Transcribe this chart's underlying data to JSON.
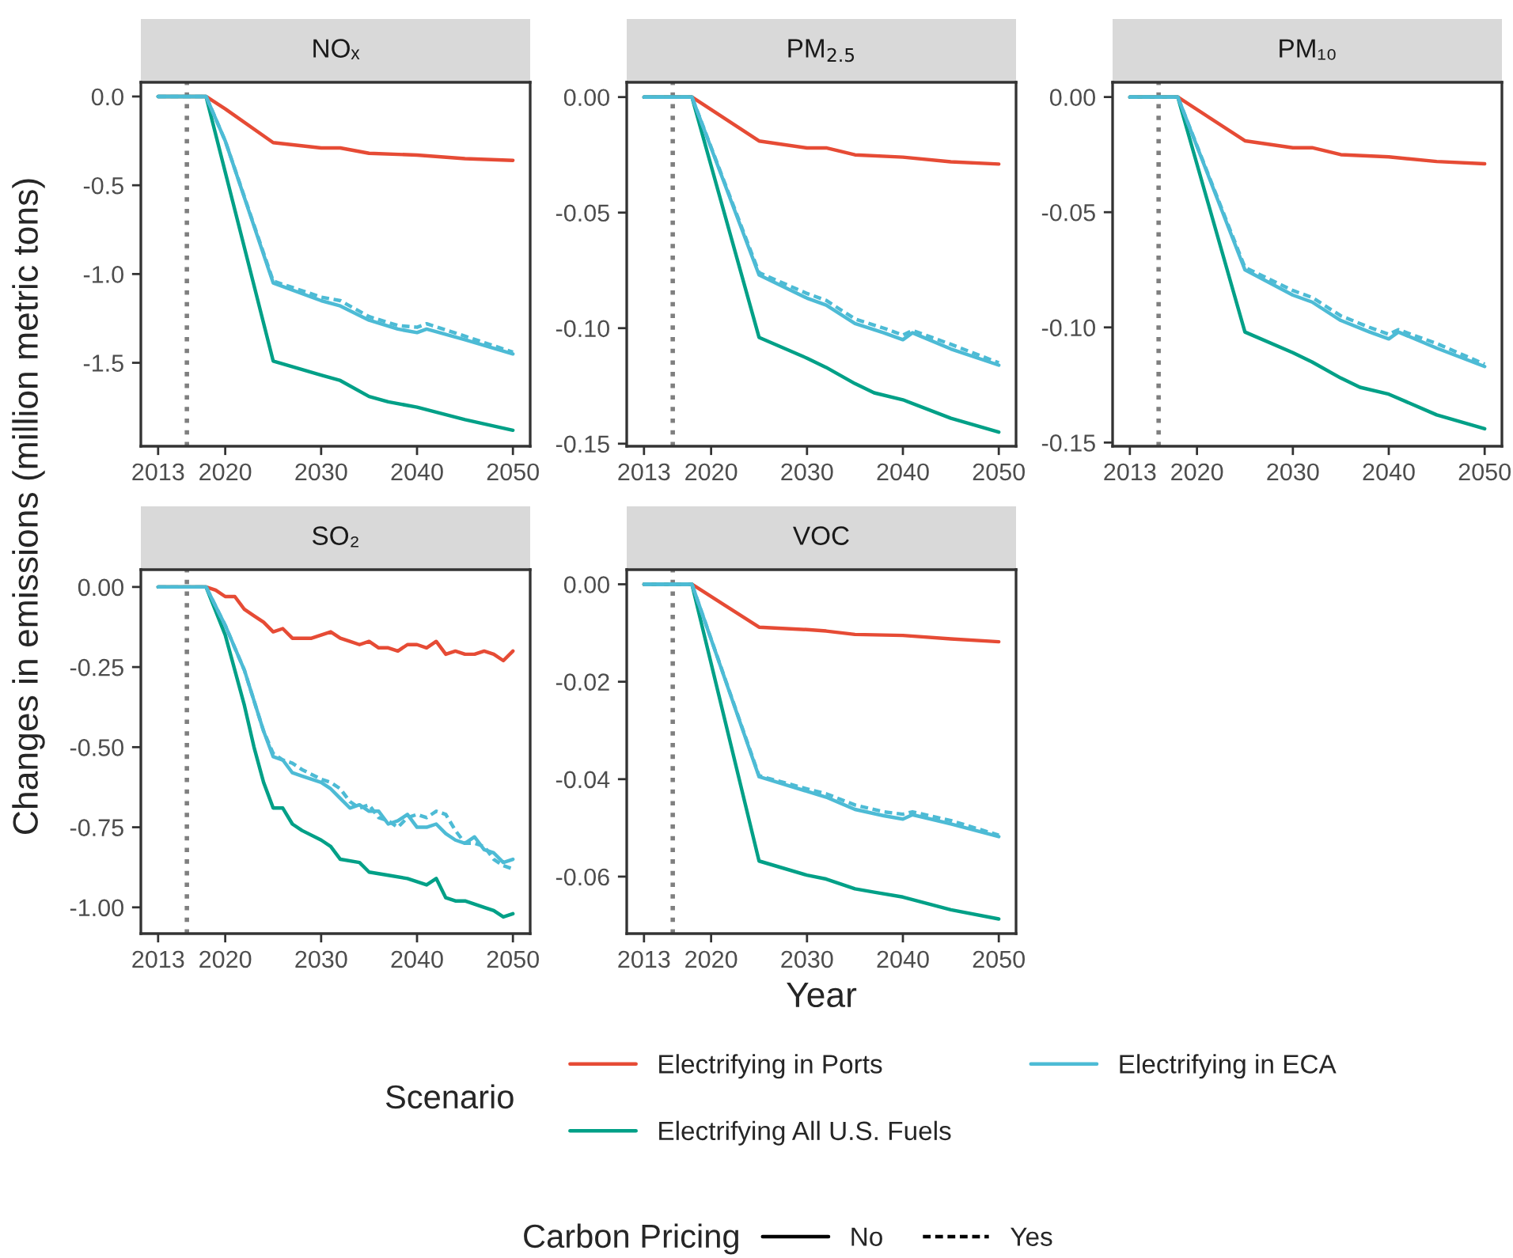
{
  "chart_data": [
    {
      "type": "line",
      "title": "NOₓ",
      "ylabel": "Changes in emissions (million metric tons)",
      "legend_title": "Scenario",
      "legend": "bottom",
      "annotations": [
        "Carbon Pricing",
        "No",
        "Yes"
      ],
      "xlim": [
        2011.2,
        2051.8
      ],
      "xticks": [
        2013,
        2020,
        2030,
        2040,
        2050
      ],
      "ylim": [
        -1.97,
        0.08
      ],
      "yticks": [
        {
          "value": 0,
          "label": "0.0"
        },
        {
          "value": -0.5,
          "label": "-0.5"
        },
        {
          "value": -1.0,
          "label": "-1.0"
        },
        {
          "value": -1.5,
          "label": "-1.5"
        }
      ],
      "ref_lines": [
        {
          "axis": "x",
          "value": 2016,
          "color": "#7f7f7f",
          "line_style": "dotted"
        }
      ],
      "series": [
        {
          "name": "Electrifying in Ports",
          "color": "#e64b35",
          "line_style": "solid",
          "x": [
            2013,
            2018,
            2020,
            2025,
            2030,
            2032,
            2035,
            2040,
            2045,
            2050
          ],
          "values": [
            0,
            0,
            -0.07,
            -0.26,
            -0.29,
            -0.29,
            -0.32,
            -0.33,
            -0.35,
            -0.36
          ]
        },
        {
          "name": "Electrifying All U.S. Fuels",
          "color": "#00a087",
          "line_style": "solid",
          "x": [
            2013,
            2018,
            2025,
            2030,
            2032,
            2035,
            2037,
            2040,
            2045,
            2050
          ],
          "values": [
            0,
            0,
            -1.49,
            -1.57,
            -1.6,
            -1.69,
            -1.72,
            -1.75,
            -1.82,
            -1.88
          ]
        },
        {
          "name": "Electrifying in ECA",
          "color": "#4dbbd5",
          "line_style": "solid",
          "x": [
            2013,
            2018,
            2020,
            2025,
            2030,
            2032,
            2035,
            2038,
            2040,
            2041,
            2045,
            2050
          ],
          "values": [
            0,
            0,
            -0.25,
            -1.05,
            -1.15,
            -1.18,
            -1.26,
            -1.31,
            -1.33,
            -1.31,
            -1.37,
            -1.45
          ]
        },
        {
          "color": "#4dbbd5",
          "line_style": "dashed",
          "x": [
            2013,
            2018,
            2020,
            2025,
            2030,
            2032,
            2035,
            2038,
            2040,
            2041,
            2045,
            2050
          ],
          "values": [
            0,
            0,
            -0.25,
            -1.04,
            -1.13,
            -1.15,
            -1.24,
            -1.29,
            -1.3,
            -1.28,
            -1.35,
            -1.44
          ]
        }
      ]
    },
    {
      "type": "line",
      "title": "PM$_{2.5}$",
      "xlim": [
        2011.2,
        2051.8
      ],
      "xticks": [
        2013,
        2020,
        2030,
        2040,
        2050
      ],
      "ylim": [
        -0.1511,
        0.0064
      ],
      "yticks": [
        {
          "value": 0,
          "label": "0.00"
        },
        {
          "value": -0.05,
          "label": "-0.05"
        },
        {
          "value": -0.1,
          "label": "-0.10"
        },
        {
          "value": -0.15,
          "label": "-0.15"
        }
      ],
      "ref_lines": [
        {
          "axis": "x",
          "value": 2016,
          "color": "#7f7f7f",
          "line_style": "dotted"
        }
      ],
      "series": [
        {
          "color": "#e64b35",
          "line_style": "solid",
          "x": [
            2013,
            2018,
            2025,
            2030,
            2032,
            2035,
            2040,
            2045,
            2050
          ],
          "values": [
            0,
            0,
            -0.019,
            -0.022,
            -0.022,
            -0.025,
            -0.026,
            -0.028,
            -0.029
          ]
        },
        {
          "color": "#00a087",
          "line_style": "solid",
          "x": [
            2013,
            2018,
            2025,
            2030,
            2032,
            2035,
            2037,
            2040,
            2045,
            2050
          ],
          "values": [
            0,
            0,
            -0.104,
            -0.113,
            -0.117,
            -0.124,
            -0.128,
            -0.131,
            -0.139,
            -0.145
          ]
        },
        {
          "color": "#4dbbd5",
          "line_style": "solid",
          "x": [
            2013,
            2018,
            2025,
            2030,
            2032,
            2035,
            2038,
            2040,
            2041,
            2045,
            2050
          ],
          "values": [
            0,
            0,
            -0.077,
            -0.087,
            -0.09,
            -0.098,
            -0.102,
            -0.105,
            -0.102,
            -0.109,
            -0.116
          ]
        },
        {
          "color": "#4dbbd5",
          "line_style": "dashed",
          "x": [
            2013,
            2018,
            2025,
            2030,
            2032,
            2035,
            2038,
            2040,
            2041,
            2045,
            2050
          ],
          "values": [
            0,
            0,
            -0.076,
            -0.085,
            -0.088,
            -0.096,
            -0.1,
            -0.103,
            -0.101,
            -0.107,
            -0.115
          ]
        }
      ]
    },
    {
      "type": "line",
      "title": "PM₁₀",
      "xlim": [
        2011.2,
        2051.8
      ],
      "xticks": [
        2013,
        2020,
        2030,
        2040,
        2050
      ],
      "ylim": [
        -0.1516,
        0.0064
      ],
      "yticks": [
        {
          "value": 0,
          "label": "0.00"
        },
        {
          "value": -0.05,
          "label": "-0.05"
        },
        {
          "value": -0.1,
          "label": "-0.10"
        },
        {
          "value": -0.15,
          "label": "-0.15"
        }
      ],
      "ref_lines": [
        {
          "axis": "x",
          "value": 2016,
          "color": "#7f7f7f",
          "line_style": "dotted"
        }
      ],
      "series": [
        {
          "color": "#e64b35",
          "line_style": "solid",
          "x": [
            2013,
            2018,
            2025,
            2030,
            2032,
            2035,
            2040,
            2045,
            2050
          ],
          "values": [
            0,
            0,
            -0.019,
            -0.022,
            -0.022,
            -0.025,
            -0.026,
            -0.028,
            -0.029
          ]
        },
        {
          "color": "#00a087",
          "line_style": "solid",
          "x": [
            2013,
            2018,
            2025,
            2030,
            2032,
            2035,
            2037,
            2040,
            2045,
            2050
          ],
          "values": [
            0,
            0,
            -0.102,
            -0.111,
            -0.115,
            -0.122,
            -0.126,
            -0.129,
            -0.138,
            -0.144
          ]
        },
        {
          "color": "#4dbbd5",
          "line_style": "solid",
          "x": [
            2013,
            2018,
            2025,
            2030,
            2032,
            2035,
            2038,
            2040,
            2041,
            2045,
            2050
          ],
          "values": [
            0,
            0,
            -0.075,
            -0.086,
            -0.089,
            -0.097,
            -0.102,
            -0.105,
            -0.102,
            -0.109,
            -0.117
          ]
        },
        {
          "color": "#4dbbd5",
          "line_style": "dashed",
          "x": [
            2013,
            2018,
            2025,
            2030,
            2032,
            2035,
            2038,
            2040,
            2041,
            2045,
            2050
          ],
          "values": [
            0,
            0,
            -0.074,
            -0.084,
            -0.087,
            -0.095,
            -0.1,
            -0.103,
            -0.101,
            -0.107,
            -0.116
          ]
        }
      ]
    },
    {
      "type": "line",
      "title": "SO₂",
      "xlim": [
        2011.2,
        2051.8
      ],
      "xticks": [
        2013,
        2020,
        2030,
        2040,
        2050
      ],
      "ylim": [
        -1.082,
        0.054
      ],
      "yticks": [
        {
          "value": 0,
          "label": "0.00"
        },
        {
          "value": -0.25,
          "label": "-0.25"
        },
        {
          "value": -0.5,
          "label": "-0.50"
        },
        {
          "value": -0.75,
          "label": "-0.75"
        },
        {
          "value": -1.0,
          "label": "-1.00"
        }
      ],
      "ref_lines": [
        {
          "axis": "x",
          "value": 2016,
          "color": "#7f7f7f",
          "line_style": "dotted"
        }
      ],
      "series": [
        {
          "color": "#e64b35",
          "line_style": "solid",
          "x": [
            2013,
            2018,
            2019,
            2020,
            2021,
            2022,
            2023,
            2024,
            2025,
            2026,
            2027,
            2028,
            2029,
            2030,
            2031,
            2032,
            2033,
            2034,
            2035,
            2036,
            2037,
            2038,
            2039,
            2040,
            2041,
            2042,
            2043,
            2044,
            2045,
            2046,
            2047,
            2048,
            2049,
            2050
          ],
          "values": [
            0,
            0,
            -0.01,
            -0.03,
            -0.03,
            -0.07,
            -0.09,
            -0.11,
            -0.14,
            -0.13,
            -0.16,
            -0.16,
            -0.16,
            -0.15,
            -0.14,
            -0.16,
            -0.17,
            -0.18,
            -0.17,
            -0.19,
            -0.19,
            -0.2,
            -0.18,
            -0.18,
            -0.19,
            -0.17,
            -0.21,
            -0.2,
            -0.21,
            -0.21,
            -0.2,
            -0.21,
            -0.23,
            -0.2
          ]
        },
        {
          "color": "#00a087",
          "line_style": "solid",
          "x": [
            2013,
            2018,
            2020,
            2022,
            2023,
            2024,
            2025,
            2026,
            2027,
            2028,
            2030,
            2031,
            2032,
            2034,
            2035,
            2037,
            2039,
            2040,
            2041,
            2042,
            2043,
            2044,
            2045,
            2047,
            2048,
            2049,
            2050
          ],
          "values": [
            0,
            0,
            -0.15,
            -0.37,
            -0.5,
            -0.61,
            -0.69,
            -0.69,
            -0.74,
            -0.76,
            -0.79,
            -0.81,
            -0.85,
            -0.86,
            -0.89,
            -0.9,
            -0.91,
            -0.92,
            -0.93,
            -0.91,
            -0.97,
            -0.98,
            -0.98,
            -1.0,
            -1.01,
            -1.03,
            -1.02
          ]
        },
        {
          "color": "#4dbbd5",
          "line_style": "solid",
          "x": [
            2013,
            2018,
            2020,
            2022,
            2024,
            2025,
            2026,
            2027,
            2028,
            2030,
            2031,
            2032,
            2033,
            2034,
            2035,
            2036,
            2037,
            2038,
            2039,
            2040,
            2041,
            2042,
            2043,
            2044,
            2045,
            2046,
            2047,
            2048,
            2049,
            2050
          ],
          "values": [
            0,
            0,
            -0.12,
            -0.26,
            -0.45,
            -0.53,
            -0.54,
            -0.58,
            -0.59,
            -0.61,
            -0.63,
            -0.66,
            -0.69,
            -0.68,
            -0.7,
            -0.7,
            -0.74,
            -0.73,
            -0.71,
            -0.75,
            -0.75,
            -0.74,
            -0.77,
            -0.79,
            -0.8,
            -0.78,
            -0.82,
            -0.83,
            -0.86,
            -0.85
          ]
        },
        {
          "color": "#4dbbd5",
          "line_style": "dashed",
          "x": [
            2013,
            2018,
            2020,
            2022,
            2024,
            2025,
            2026,
            2027,
            2028,
            2030,
            2031,
            2032,
            2033,
            2034,
            2035,
            2036,
            2037,
            2038,
            2039,
            2040,
            2041,
            2042,
            2043,
            2044,
            2045,
            2046,
            2047,
            2048,
            2049,
            2050
          ],
          "values": [
            0,
            0,
            -0.12,
            -0.26,
            -0.45,
            -0.52,
            -0.54,
            -0.55,
            -0.57,
            -0.6,
            -0.61,
            -0.63,
            -0.67,
            -0.69,
            -0.68,
            -0.72,
            -0.73,
            -0.75,
            -0.72,
            -0.71,
            -0.72,
            -0.7,
            -0.71,
            -0.76,
            -0.8,
            -0.8,
            -0.81,
            -0.85,
            -0.87,
            -0.88
          ]
        }
      ]
    },
    {
      "type": "line",
      "title": "VOC",
      "xlabel": "Year",
      "xlim": [
        2011.2,
        2051.8
      ],
      "xticks": [
        2013,
        2020,
        2030,
        2040,
        2050
      ],
      "ylim": [
        -0.0717,
        0.003
      ],
      "yticks": [
        {
          "value": 0,
          "label": "0.00"
        },
        {
          "value": -0.02,
          "label": "-0.02"
        },
        {
          "value": -0.04,
          "label": "-0.04"
        },
        {
          "value": -0.06,
          "label": "-0.06"
        }
      ],
      "ref_lines": [
        {
          "axis": "x",
          "value": 2016,
          "color": "#7f7f7f",
          "line_style": "dotted"
        }
      ],
      "series": [
        {
          "color": "#e64b35",
          "line_style": "solid",
          "x": [
            2013,
            2018,
            2025,
            2030,
            2032,
            2035,
            2040,
            2045,
            2050
          ],
          "values": [
            0,
            0,
            -0.0088,
            -0.0093,
            -0.0096,
            -0.0103,
            -0.0105,
            -0.0112,
            -0.0118
          ]
        },
        {
          "color": "#00a087",
          "line_style": "solid",
          "x": [
            2013,
            2018,
            2025,
            2030,
            2032,
            2035,
            2037,
            2040,
            2045,
            2050
          ],
          "values": [
            0,
            0,
            -0.0568,
            -0.0597,
            -0.0605,
            -0.0625,
            -0.0632,
            -0.0642,
            -0.0668,
            -0.0687
          ]
        },
        {
          "color": "#4dbbd5",
          "line_style": "solid",
          "x": [
            2013,
            2018,
            2025,
            2030,
            2032,
            2035,
            2038,
            2040,
            2041,
            2045,
            2050
          ],
          "values": [
            0,
            0,
            -0.0395,
            -0.0425,
            -0.0437,
            -0.0462,
            -0.0475,
            -0.0482,
            -0.0473,
            -0.0492,
            -0.0518
          ]
        },
        {
          "color": "#4dbbd5",
          "line_style": "dashed",
          "x": [
            2013,
            2018,
            2025,
            2030,
            2032,
            2035,
            2038,
            2040,
            2041,
            2045,
            2050
          ],
          "values": [
            0,
            0,
            -0.0393,
            -0.042,
            -0.043,
            -0.0453,
            -0.0467,
            -0.0472,
            -0.0467,
            -0.0485,
            -0.0515
          ]
        }
      ]
    }
  ]
}
